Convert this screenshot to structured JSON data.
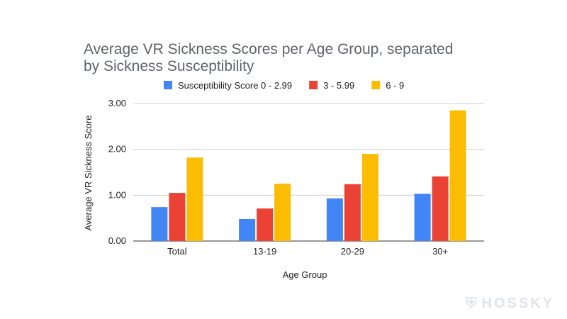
{
  "chart_data": {
    "type": "bar",
    "title_lines": [
      "Average VR Sickness Scores per Age Group, separated",
      "by Sickness Susceptibility"
    ],
    "xlabel": "Age Group",
    "ylabel": "Average VR Sickness Score",
    "categories": [
      "Total",
      "13-19",
      "20-29",
      "30+"
    ],
    "ylim": [
      0,
      3
    ],
    "yticks": [
      "0.00",
      "1.00",
      "2.00",
      "3.00"
    ],
    "legend_position": "top",
    "grid": true,
    "series": [
      {
        "name": "Susceptibility Score 0 - 2.99",
        "color": "#4285f4",
        "values": [
          0.74,
          0.48,
          0.93,
          1.03
        ]
      },
      {
        "name": "3 - 5.99",
        "color": "#ea4335",
        "values": [
          1.05,
          0.71,
          1.24,
          1.41
        ]
      },
      {
        "name": "6 - 9",
        "color": "#fbbc04",
        "values": [
          1.82,
          1.25,
          1.9,
          2.85
        ]
      }
    ]
  },
  "watermark": {
    "text": "HOSSKY",
    "icon": "shield-icon"
  }
}
